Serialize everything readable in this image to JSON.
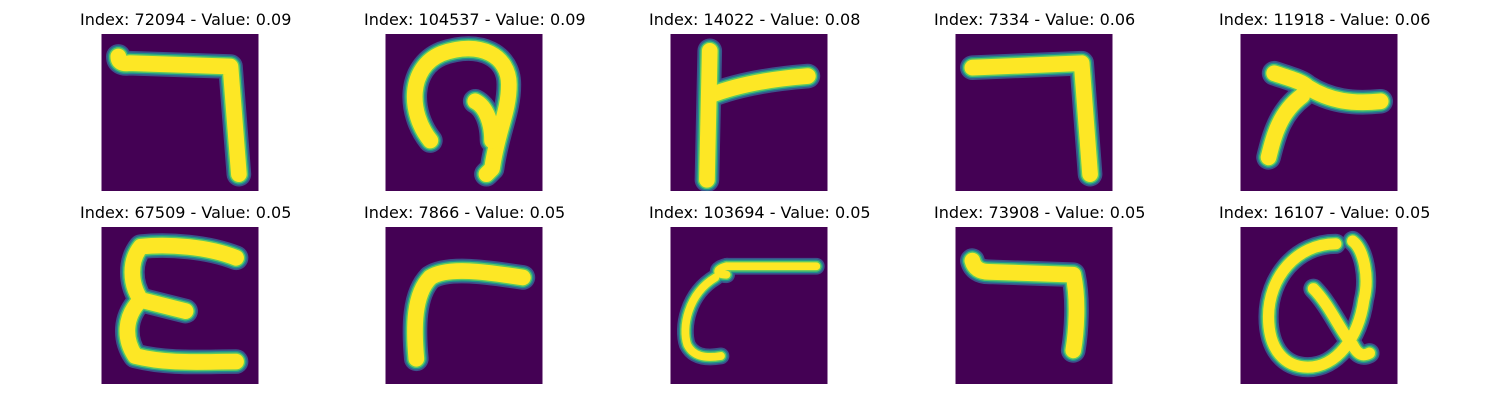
{
  "colors": {
    "background": "#440154",
    "stroke": "#fde725",
    "edge_light": "#5ec962",
    "edge_mid": "#21918c",
    "edge_dark": "#3b528b"
  },
  "panels": [
    {
      "title": "Index: 72094 - Value: 0.09",
      "glyph": "hook-seven"
    },
    {
      "title": "Index: 104537 - Value: 0.09",
      "glyph": "loop-p"
    },
    {
      "title": "Index: 14022 - Value: 0.08",
      "glyph": "gamma-r"
    },
    {
      "title": "Index: 7334 - Value: 0.06",
      "glyph": "seven"
    },
    {
      "title": "Index: 11918 - Value: 0.06",
      "glyph": "slanted-r"
    },
    {
      "title": "Index: 67509 - Value: 0.05",
      "glyph": "epsilon"
    },
    {
      "title": "Index: 7866 - Value: 0.05",
      "glyph": "corner-r"
    },
    {
      "title": "Index: 103694 - Value: 0.05",
      "glyph": "curl-c"
    },
    {
      "title": "Index: 73908 - Value: 0.05",
      "glyph": "hook-seven"
    },
    {
      "title": "Index: 16107 - Value: 0.05",
      "glyph": "alpha-a"
    }
  ]
}
